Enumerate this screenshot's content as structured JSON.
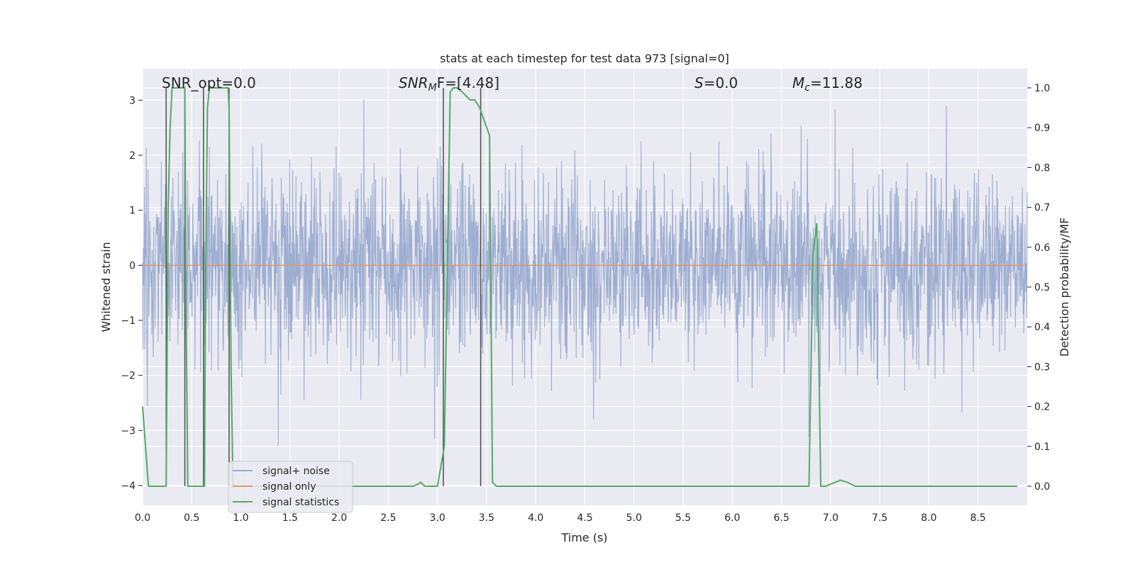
{
  "chart_data": {
    "type": "line",
    "title": "stats at each timestep for test data 973 [signal=0]",
    "xlabel": "Time (s)",
    "ylabel_left": "Whitened strain",
    "ylabel_right": "Detection probability/MF",
    "xlim": [
      0.0,
      9.0
    ],
    "ylim_left": [
      -4.36,
      3.57
    ],
    "ylim_right": [
      -0.048,
      1.048
    ],
    "x_ticks": [
      "0.0",
      "0.5",
      "1.0",
      "1.5",
      "2.0",
      "2.5",
      "3.0",
      "3.5",
      "4.0",
      "4.5",
      "5.0",
      "5.5",
      "6.0",
      "6.5",
      "7.0",
      "7.5",
      "8.0",
      "8.5"
    ],
    "y_ticks_left": [
      "−4",
      "−3",
      "−2",
      "−1",
      "0",
      "1",
      "2",
      "3"
    ],
    "y_ticks_right": [
      "0.0",
      "0.1",
      "0.2",
      "0.3",
      "0.4",
      "0.5",
      "0.6",
      "0.7",
      "0.8",
      "0.9",
      "1.0"
    ],
    "grid": true,
    "legend_position": "lower-left",
    "annotations": {
      "snr_opt": "SNR_opt=0.0",
      "snr_mf": "SNR",
      "snr_mf_sub": "M",
      "snr_mf_rest": "F=[4.48]",
      "s": "S",
      "s_rest": "=0.0",
      "mc": "M",
      "mc_sub": "c",
      "mc_rest": "=11.88"
    },
    "series": [
      {
        "name": "signal+ noise",
        "color": "#9aabcf",
        "description_noise": {
          "mean": 0.0,
          "std": 0.85,
          "min": -3.4,
          "max": 3.5
        }
      },
      {
        "name": "signal only",
        "color": "#dd9a72",
        "values_constant": 0.0
      },
      {
        "name": "signal statistics",
        "color": "#55a868",
        "axis": "right",
        "x": [
          0.0,
          0.03,
          0.06,
          0.08,
          0.24,
          0.25,
          0.26,
          0.28,
          0.3,
          0.31,
          0.33,
          0.43,
          0.44,
          0.46,
          0.48,
          0.51,
          0.63,
          0.64,
          0.66,
          0.68,
          0.7,
          0.87,
          0.88,
          0.9,
          0.92,
          0.95,
          2.6,
          2.75,
          2.8,
          2.83,
          2.87,
          3.0,
          3.07,
          3.13,
          3.16,
          3.2,
          3.25,
          3.33,
          3.38,
          3.43,
          3.53,
          3.56,
          3.6,
          3.65,
          6.75,
          6.78,
          6.82,
          6.86,
          6.9,
          6.95,
          7.1,
          7.17,
          7.25,
          8.3,
          8.9
        ],
        "y": [
          0.2,
          0.1,
          0.0,
          0.0,
          0.0,
          0.35,
          0.7,
          0.9,
          1.0,
          1.0,
          1.0,
          1.0,
          0.5,
          0.0,
          0.0,
          0.0,
          0.0,
          0.5,
          0.95,
          1.0,
          1.0,
          1.0,
          0.95,
          0.3,
          0.0,
          0.0,
          0.0,
          0.0,
          0.005,
          0.01,
          0.0,
          0.0,
          0.1,
          0.99,
          1.0,
          1.0,
          0.99,
          0.97,
          0.97,
          0.95,
          0.88,
          0.01,
          0.0,
          0.0,
          0.0,
          0.0,
          0.58,
          0.66,
          0.0,
          0.0,
          0.015,
          0.01,
          0.0,
          0.0,
          0.0
        ]
      }
    ],
    "vertical_lines_x": [
      0.24,
      0.43,
      0.62,
      0.88,
      3.06,
      3.44
    ]
  }
}
